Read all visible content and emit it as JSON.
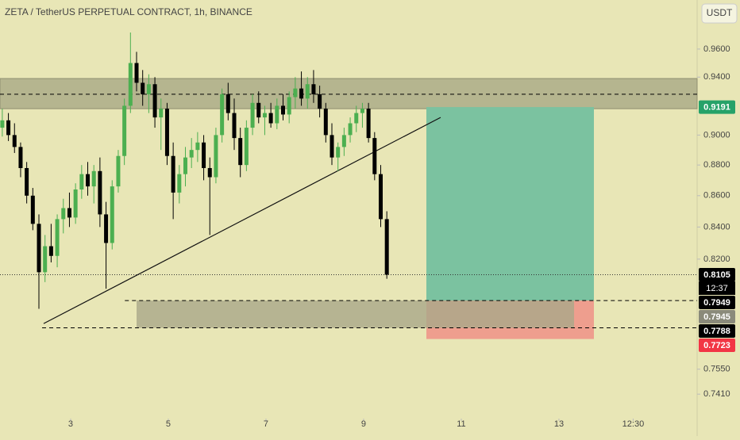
{
  "chart_data": {
    "type": "candlestick",
    "title": "ZETA / TetherUS PERPETUAL CONTRACT, 1h, BINANCE",
    "currency": "USDT",
    "countdown": "12:37",
    "log_scale": true,
    "up_color": "#4caf50",
    "down_color": "#000000",
    "x": [
      1.6,
      1.725,
      1.85,
      1.975,
      2.1,
      2.225,
      2.35,
      2.475,
      2.6,
      2.725,
      2.85,
      2.975,
      3.1,
      3.225,
      3.35,
      3.475,
      3.6,
      3.725,
      3.85,
      3.975,
      4.1,
      4.225,
      4.35,
      4.475,
      4.6,
      4.725,
      4.85,
      4.975,
      5.1,
      5.225,
      5.35,
      5.475,
      5.6,
      5.725,
      5.85,
      5.975,
      6.1,
      6.225,
      6.35,
      6.475,
      6.6,
      6.725,
      6.85,
      6.975,
      7.1,
      7.225,
      7.35,
      7.475,
      7.6,
      7.725,
      7.85,
      7.975,
      8.1,
      8.225,
      8.35,
      8.475,
      8.6,
      8.725,
      8.85,
      8.975,
      9.1,
      9.225,
      9.35,
      9.475
    ],
    "open": [
      0.905,
      0.91,
      0.9,
      0.892,
      0.878,
      0.86,
      0.842,
      0.812,
      0.828,
      0.822,
      0.845,
      0.852,
      0.846,
      0.864,
      0.874,
      0.866,
      0.876,
      0.848,
      0.83,
      0.866,
      0.886,
      0.92,
      0.95,
      0.936,
      0.928,
      0.935,
      0.912,
      0.918,
      0.886,
      0.862,
      0.874,
      0.885,
      0.89,
      0.895,
      0.878,
      0.872,
      0.9,
      0.928,
      0.915,
      0.898,
      0.88,
      0.905,
      0.922,
      0.912,
      0.915,
      0.908,
      0.92,
      0.914,
      0.926,
      0.932,
      0.925,
      0.935,
      0.928,
      0.918,
      0.9,
      0.885,
      0.892,
      0.9,
      0.908,
      0.915,
      0.918,
      0.898,
      0.874,
      0.845
    ],
    "high": [
      0.918,
      0.915,
      0.908,
      0.895,
      0.882,
      0.865,
      0.848,
      0.835,
      0.842,
      0.848,
      0.858,
      0.862,
      0.868,
      0.88,
      0.882,
      0.88,
      0.885,
      0.856,
      0.87,
      0.89,
      0.925,
      0.972,
      0.958,
      0.945,
      0.942,
      0.94,
      0.925,
      0.922,
      0.895,
      0.88,
      0.892,
      0.898,
      0.902,
      0.9,
      0.885,
      0.905,
      0.932,
      0.936,
      0.925,
      0.905,
      0.91,
      0.928,
      0.93,
      0.92,
      0.922,
      0.925,
      0.928,
      0.93,
      0.94,
      0.944,
      0.94,
      0.945,
      0.934,
      0.922,
      0.908,
      0.895,
      0.905,
      0.912,
      0.92,
      0.922,
      0.922,
      0.902,
      0.88,
      0.85
    ],
    "low": [
      0.899,
      0.896,
      0.888,
      0.872,
      0.855,
      0.838,
      0.79,
      0.806,
      0.818,
      0.815,
      0.836,
      0.84,
      0.842,
      0.858,
      0.86,
      0.855,
      0.84,
      0.802,
      0.826,
      0.862,
      0.88,
      0.915,
      0.93,
      0.92,
      0.915,
      0.905,
      0.89,
      0.88,
      0.845,
      0.855,
      0.866,
      0.878,
      0.882,
      0.87,
      0.835,
      0.868,
      0.895,
      0.91,
      0.89,
      0.872,
      0.876,
      0.9,
      0.908,
      0.9,
      0.905,
      0.904,
      0.91,
      0.908,
      0.918,
      0.92,
      0.918,
      0.922,
      0.912,
      0.895,
      0.88,
      0.876,
      0.886,
      0.895,
      0.902,
      0.905,
      0.895,
      0.87,
      0.84,
      0.808
    ],
    "close": [
      0.91,
      0.9,
      0.892,
      0.878,
      0.86,
      0.842,
      0.812,
      0.828,
      0.822,
      0.845,
      0.852,
      0.846,
      0.864,
      0.874,
      0.866,
      0.876,
      0.848,
      0.83,
      0.866,
      0.886,
      0.92,
      0.95,
      0.936,
      0.928,
      0.935,
      0.912,
      0.918,
      0.886,
      0.862,
      0.874,
      0.885,
      0.89,
      0.895,
      0.878,
      0.872,
      0.9,
      0.928,
      0.915,
      0.898,
      0.88,
      0.905,
      0.922,
      0.912,
      0.915,
      0.908,
      0.92,
      0.914,
      0.926,
      0.932,
      0.925,
      0.935,
      0.928,
      0.918,
      0.9,
      0.885,
      0.892,
      0.9,
      0.908,
      0.915,
      0.918,
      0.898,
      0.874,
      0.845,
      0.8105
    ],
    "close_label": "0.8105",
    "xlim": [
      1.553,
      15.83
    ],
    "xticks": [
      3,
      5,
      7,
      9,
      11,
      13,
      {
        "value": 14.52,
        "label": "12:30"
      }
    ],
    "ylim": [
      0.731,
      0.996
    ],
    "yticks": [
      {
        "value": 0.96,
        "label": "0.9600"
      },
      {
        "value": 0.94,
        "label": "0.9400"
      },
      {
        "value": 0.9,
        "label": "0.9000"
      },
      {
        "value": 0.88,
        "label": "0.8800"
      },
      {
        "value": 0.86,
        "label": "0.8600"
      },
      {
        "value": 0.84,
        "label": "0.8400"
      },
      {
        "value": 0.82,
        "label": "0.8200"
      },
      {
        "value": 0.755,
        "label": "0.7550"
      },
      {
        "value": 0.741,
        "label": "0.7410"
      }
    ],
    "price_labels": [
      {
        "value": 0.9191,
        "label": "0.9191",
        "color": "#26a269"
      },
      {
        "value": 0.7949,
        "label": "0.7949",
        "color": "#000000"
      },
      {
        "value": 0.7945,
        "label": "0.7945",
        "color": "#8a8a7a"
      },
      {
        "value": 0.7788,
        "label": "0.7788",
        "color": "#000000"
      },
      {
        "value": 0.7723,
        "label": "0.7723",
        "color": "#f23645"
      }
    ],
    "resistance_zone": {
      "y": [
        0.918,
        0.939
      ],
      "mid": 0.928,
      "color": "#b5b58f"
    },
    "support_zone": {
      "x": [
        4.35,
        13.31
      ],
      "y": [
        0.7788,
        0.7949
      ],
      "color": "#a9a88a"
    },
    "dashed_lines": [
      {
        "y": 0.7949,
        "x0": 4.11
      },
      {
        "y": 0.7788,
        "x0": 2.415
      }
    ],
    "trend_line": {
      "x": [
        2.447,
        10.577
      ],
      "y": [
        0.7813,
        0.912
      ]
    },
    "position": {
      "x": [
        10.285,
        13.716
      ],
      "entry": 0.7949,
      "target": 0.9191,
      "stop": 0.7723,
      "profit_color": "#7bc2a0",
      "loss_color": "#ee9e8e"
    }
  }
}
